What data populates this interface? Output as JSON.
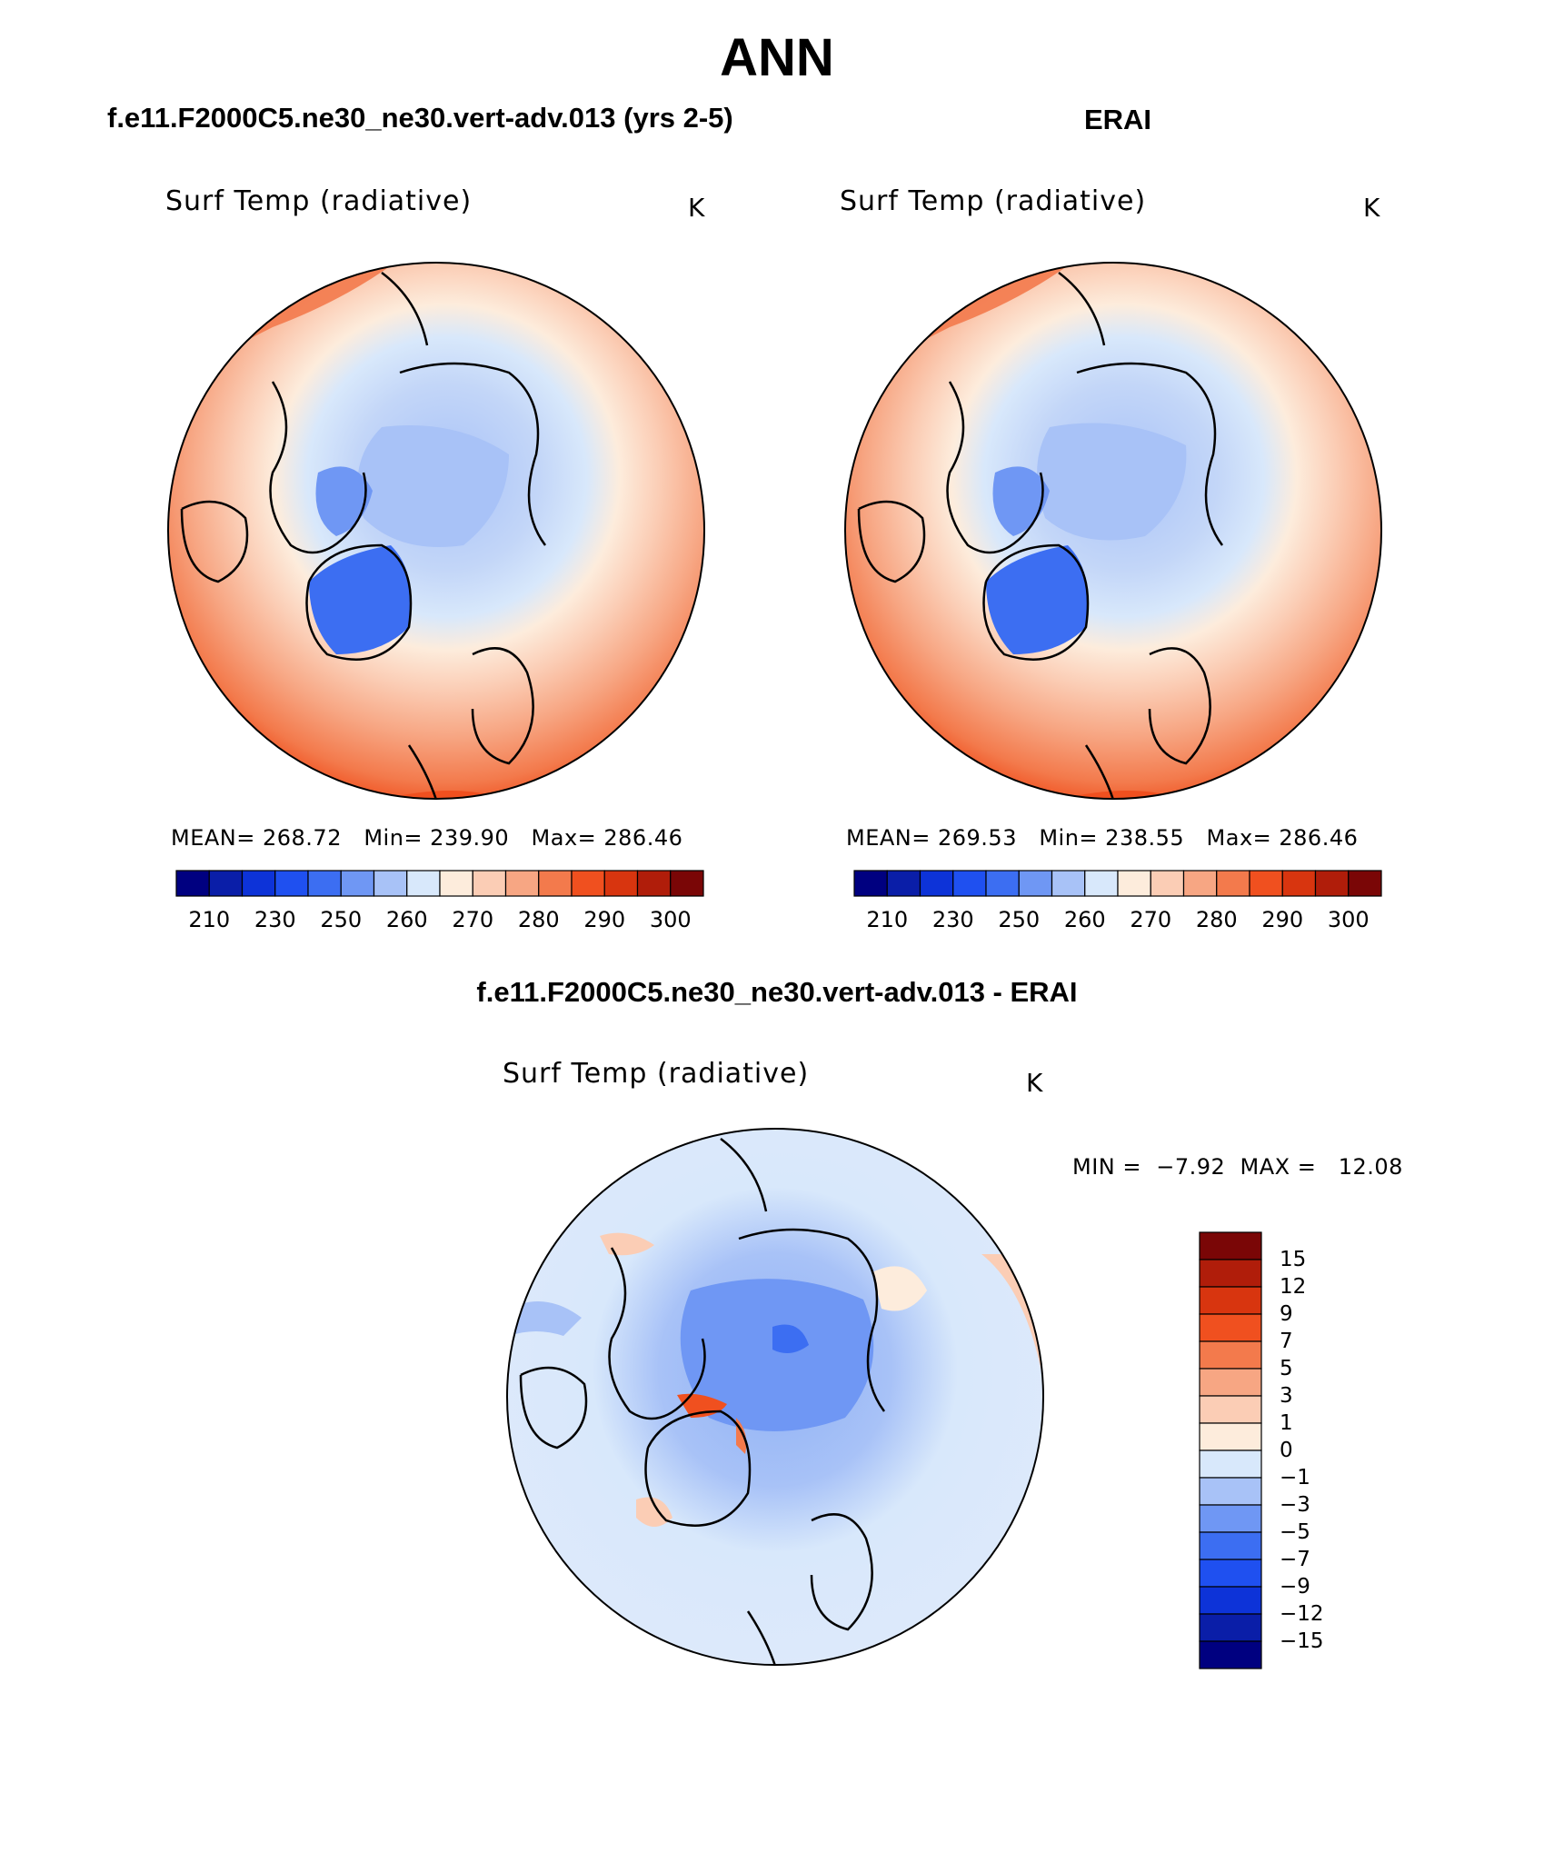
{
  "main_title": "ANN",
  "panels": [
    {
      "case_title": "f.e11.F2000C5.ne30_ne30.vert-adv.013 (yrs 2-5)",
      "variable": "Surf Temp (radiative)",
      "units": "K",
      "stats": "MEAN= 268.72   Min= 239.90   Max= 286.46"
    },
    {
      "case_title": "ERAI",
      "variable": "Surf Temp (radiative)",
      "units": "K",
      "stats": "MEAN= 269.53   Min= 238.55   Max= 286.46"
    }
  ],
  "difference": {
    "title": "f.e11.F2000C5.ne30_ne30.vert-adv.013 - ERAI",
    "variable": "Surf Temp (radiative)",
    "units": "K",
    "minmax": "MIN =  −7.92  MAX =   12.08"
  },
  "colorbar_abs": {
    "colors": [
      "#000080",
      "#0a1ea8",
      "#0d33d8",
      "#1f50f0",
      "#3c6ef2",
      "#6f97f4",
      "#a8c2f7",
      "#d8e8fb",
      "#fdecdc",
      "#fbcdb5",
      "#f7a683",
      "#f37a4c",
      "#f0501f",
      "#d8350f",
      "#b01d0a",
      "#7a0606"
    ],
    "labels": [
      "210",
      "230",
      "250",
      "260",
      "270",
      "280",
      "290",
      "300"
    ]
  },
  "colorbar_diff": {
    "colors": [
      "#7a0606",
      "#b01d0a",
      "#d8350f",
      "#f0501f",
      "#f37a4c",
      "#f7a683",
      "#fbcdb5",
      "#fdecdc",
      "#d8e8fb",
      "#a8c2f7",
      "#6f97f4",
      "#3c6ef2",
      "#1f50f0",
      "#0d33d8",
      "#0a1ea8",
      "#000080"
    ],
    "labels": [
      "15",
      "12",
      "9",
      "7",
      "5",
      "3",
      "1",
      "0",
      "−1",
      "−3",
      "−5",
      "−7",
      "−9",
      "−12",
      "−15"
    ]
  }
}
